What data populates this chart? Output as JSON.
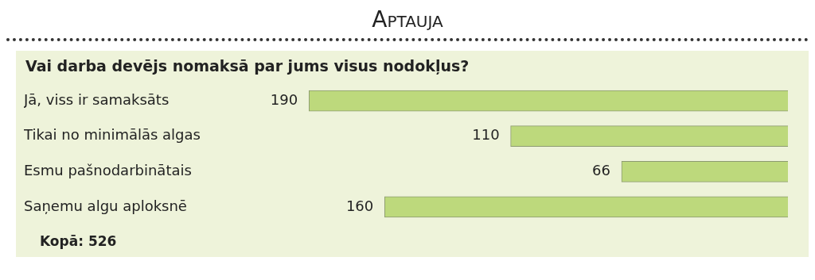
{
  "chart_data": {
    "type": "bar",
    "orientation": "horizontal",
    "title": "Aptauja",
    "subtitle": "Vai darba devējs nomaksā par jums visus nodokļus?",
    "categories": [
      "Jā, viss ir samaksāts",
      "Tikai no minimālās algas",
      "Esmu pašnodarbinātais",
      "Saņemu algu aploksnē"
    ],
    "values": [
      190,
      110,
      66,
      160
    ],
    "color": "#bdd97c",
    "data_labels": true,
    "grid": false,
    "legend": false,
    "tick_labels": "y",
    "annotations": [
      "Kopā: 526"
    ]
  }
}
